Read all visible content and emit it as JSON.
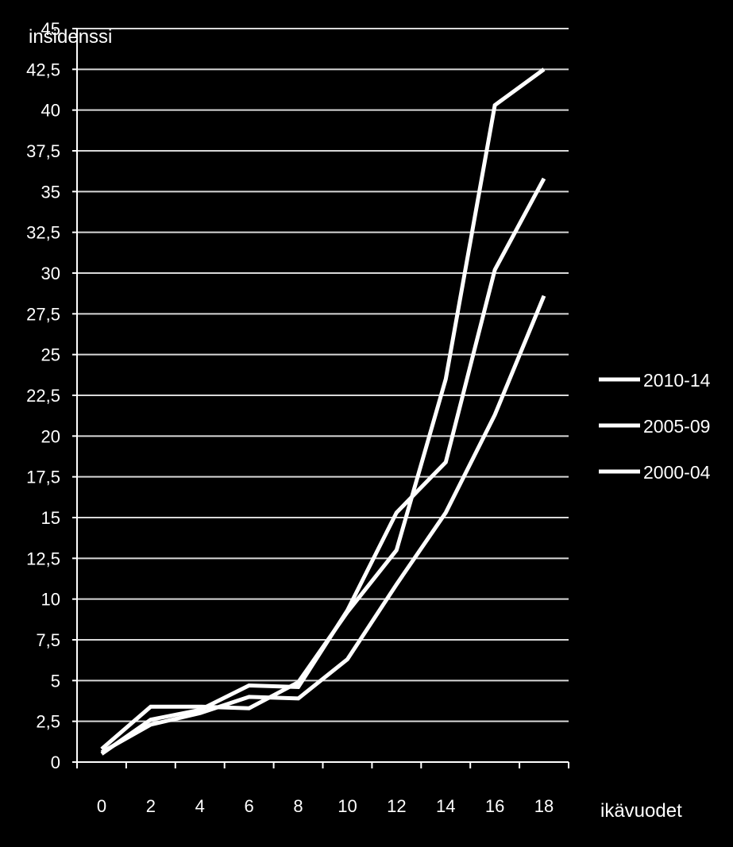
{
  "chart_data": {
    "type": "line",
    "title": "",
    "ylabel": "insidenssi",
    "xlabel": "ikävuodet",
    "ylim": [
      0,
      45
    ],
    "y_ticks": [
      "0",
      "2,5",
      "5",
      "7,5",
      "10",
      "12,5",
      "15",
      "17,5",
      "20",
      "22,5",
      "25",
      "27,5",
      "30",
      "32,5",
      "35",
      "37,5",
      "40",
      "42,5",
      "45"
    ],
    "x": [
      0,
      2,
      4,
      6,
      8,
      10,
      12,
      14,
      16,
      18
    ],
    "x_ticks": [
      "0",
      "2",
      "4",
      "6",
      "8",
      "10",
      "12",
      "14",
      "16",
      "18"
    ],
    "grid": "horizontal",
    "legend_position": "right",
    "line_color": "#ffffff",
    "background": "#000000",
    "series": [
      {
        "name": "2010-14",
        "values": [
          0.8,
          3.4,
          3.4,
          3.3,
          4.9,
          9.2,
          13.0,
          23.5,
          40.3,
          42.5
        ]
      },
      {
        "name": "2005-09",
        "values": [
          0.5,
          2.6,
          3.2,
          4.7,
          4.6,
          9.3,
          15.3,
          18.4,
          30.2,
          35.8
        ]
      },
      {
        "name": "2000-04",
        "values": [
          0.6,
          2.3,
          3.0,
          4.0,
          3.9,
          6.3,
          10.9,
          15.3,
          21.3,
          28.6
        ]
      }
    ]
  }
}
